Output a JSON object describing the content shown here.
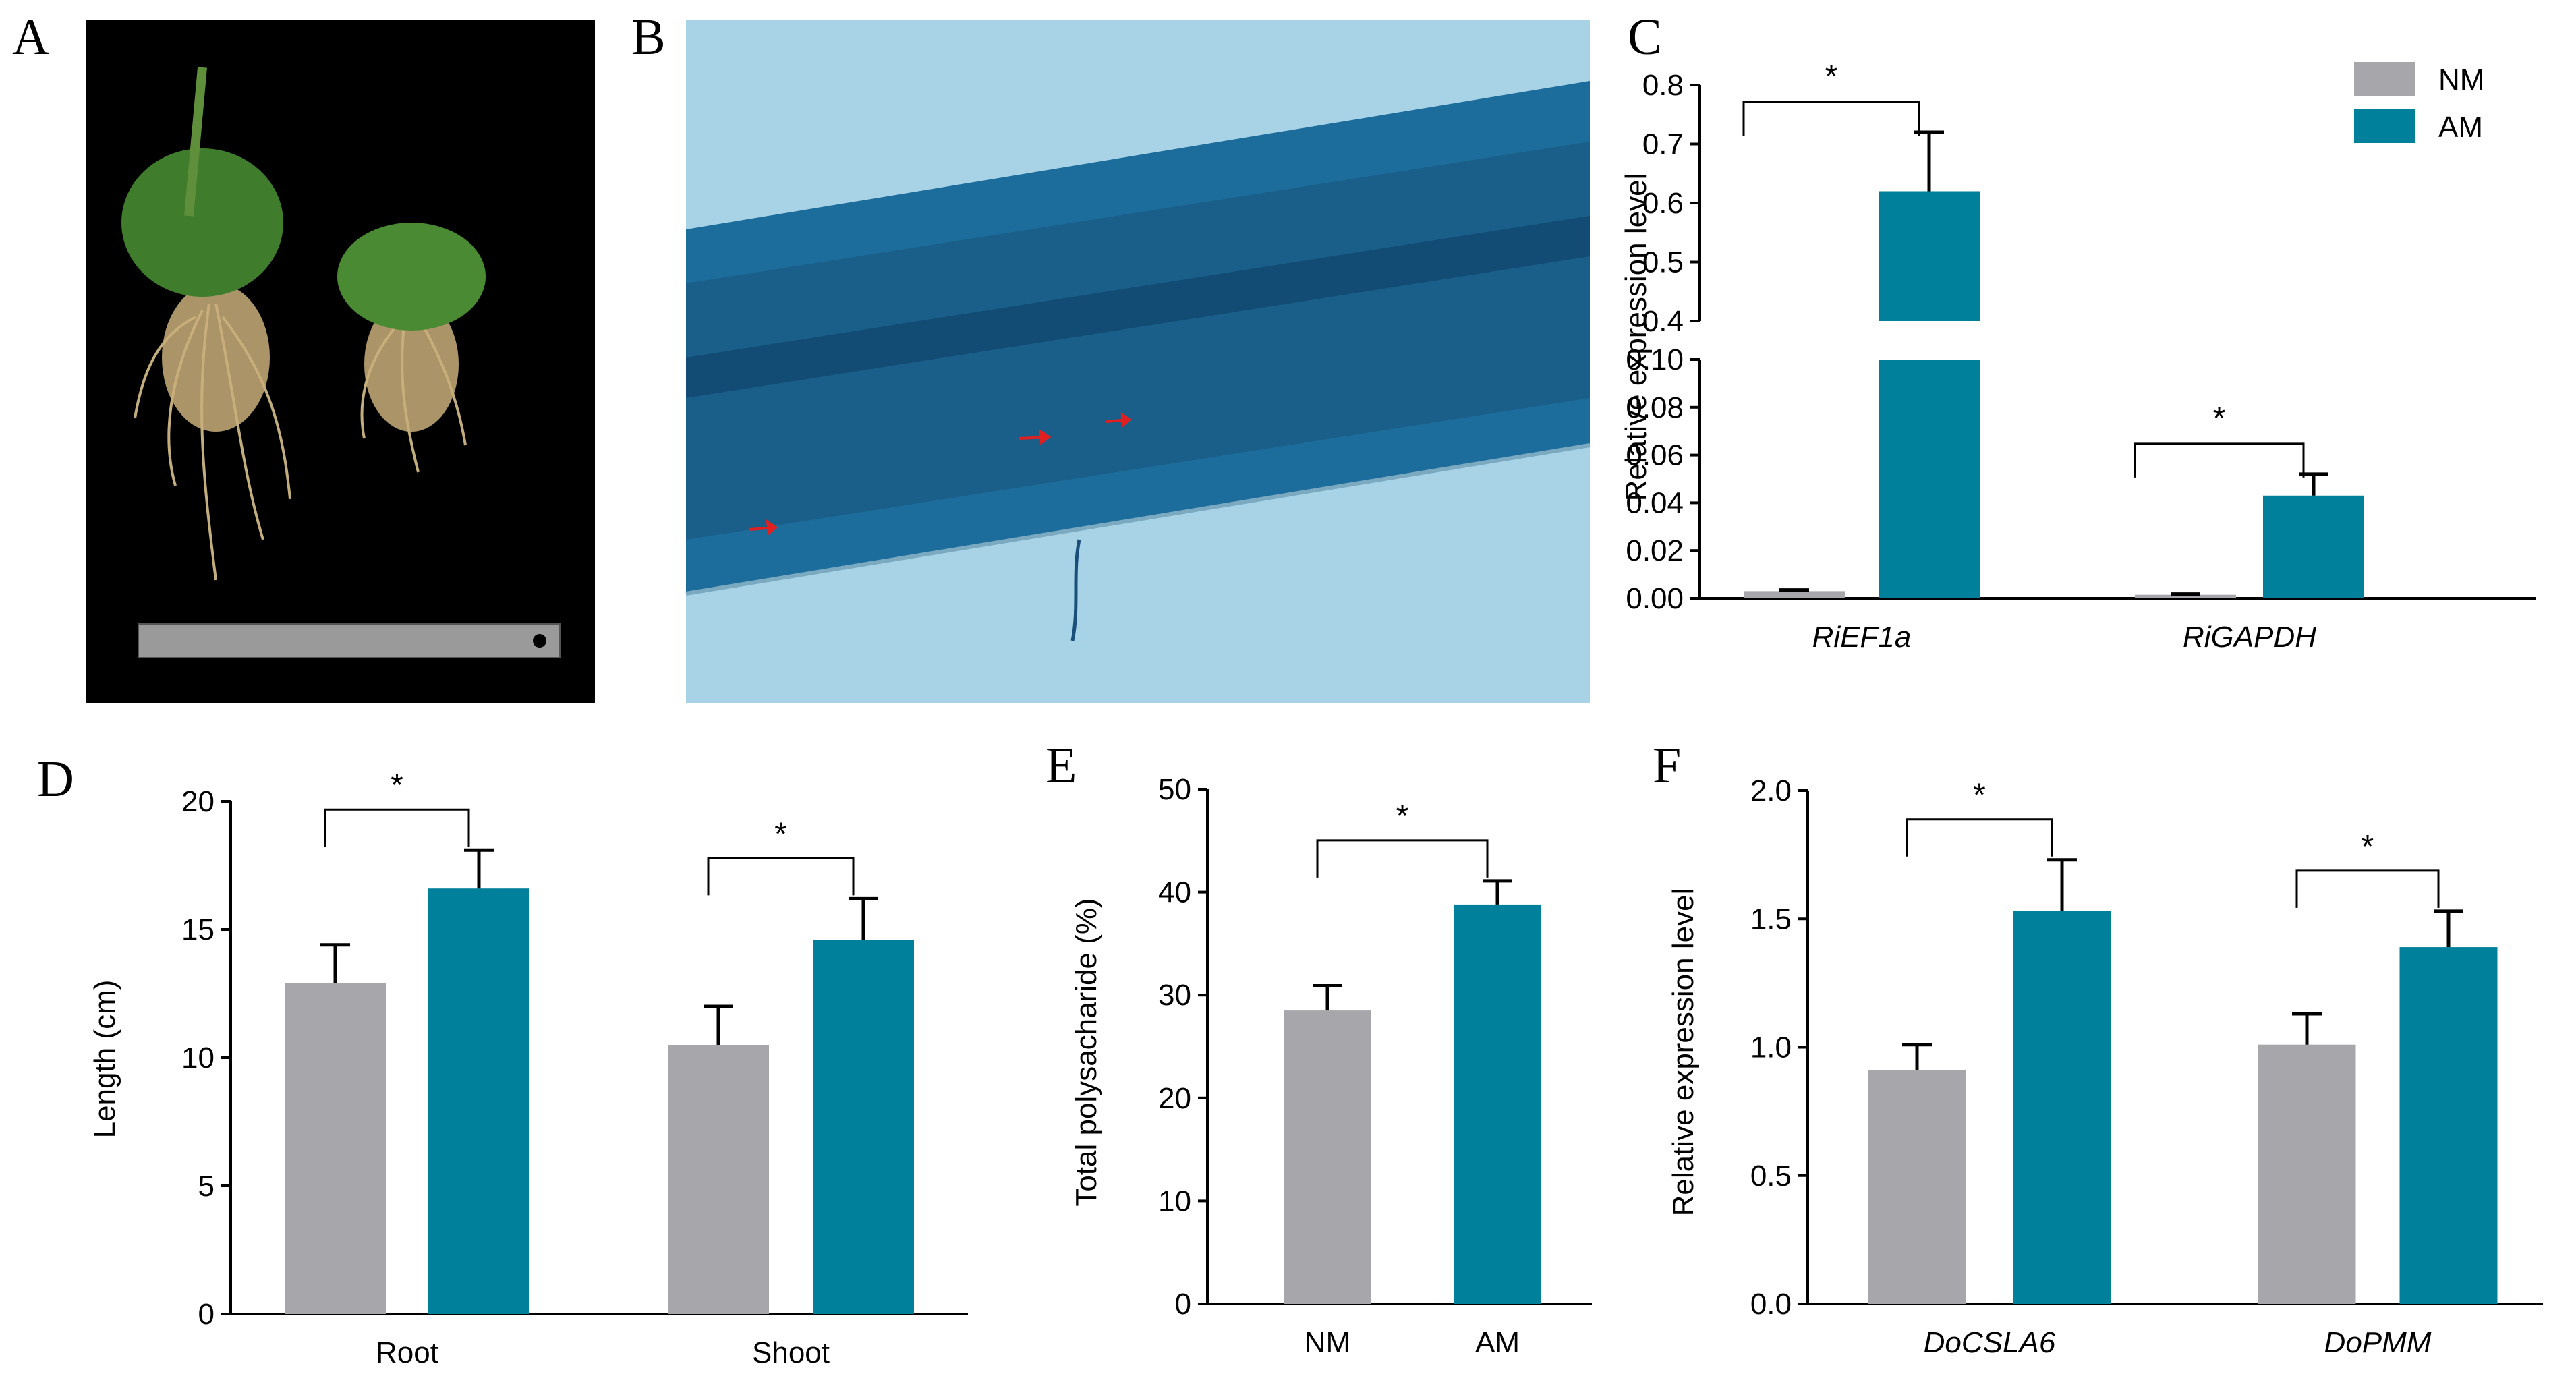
{
  "colors": {
    "nm": "#a7a6ab",
    "am": "#00809a",
    "stain_bg": "#a8d3e6",
    "photo_bg": "#000000"
  },
  "legend": [
    "NM",
    "AM"
  ],
  "panels": {
    "A": {
      "letter": "A",
      "icon": "plant-photo-icon"
    },
    "B": {
      "letter": "B",
      "icon": "root-micrograph-icon"
    }
  },
  "chart_data": [
    {
      "panel": "C",
      "type": "bar",
      "categories": [
        "RiEF1a",
        "RiGAPDH"
      ],
      "ylabel": "Relative expression level",
      "y_break": {
        "lower": [
          0,
          0.1
        ],
        "upper": [
          0.4,
          0.8
        ]
      },
      "lower_ticks": [
        "0.00",
        "0.02",
        "0.04",
        "0.06",
        "0.08",
        "0.10"
      ],
      "upper_ticks": [
        "0.4",
        "0.5",
        "0.6",
        "0.7",
        "0.8"
      ],
      "series": [
        {
          "name": "NM",
          "values": [
            0.003,
            0.0015
          ],
          "errors": [
            0.0005,
            0.0003
          ]
        },
        {
          "name": "AM",
          "values": [
            0.62,
            0.043
          ],
          "errors": [
            0.1,
            0.009
          ]
        }
      ],
      "significance": [
        "*",
        "*"
      ]
    },
    {
      "panel": "D",
      "type": "bar",
      "categories": [
        "Root",
        "Shoot"
      ],
      "ylabel": "Length  (cm)",
      "ylim": [
        0,
        20
      ],
      "ticks": [
        "0",
        "5",
        "10",
        "15",
        "20"
      ],
      "series": [
        {
          "name": "NM",
          "values": [
            12.9,
            10.5
          ],
          "errors": [
            1.5,
            1.5
          ]
        },
        {
          "name": "AM",
          "values": [
            16.6,
            14.6
          ],
          "errors": [
            1.5,
            1.6
          ]
        }
      ],
      "significance": [
        "*",
        "*"
      ]
    },
    {
      "panel": "E",
      "type": "bar",
      "categories": [
        "NM",
        "AM"
      ],
      "ylabel": "Total polysacharide  (%)",
      "ylim": [
        0,
        50
      ],
      "ticks": [
        "0",
        "10",
        "20",
        "30",
        "40",
        "50"
      ],
      "values": [
        28.5,
        38.8
      ],
      "errors": [
        2.4,
        2.3
      ],
      "significance": [
        "*"
      ]
    },
    {
      "panel": "F",
      "type": "bar",
      "categories": [
        "DoCSLA6",
        "DoPMM"
      ],
      "ylabel": "Relative expression level",
      "ylim": [
        0,
        2.0
      ],
      "ticks": [
        "0.0",
        "0.5",
        "1.0",
        "1.5",
        "2.0"
      ],
      "series": [
        {
          "name": "NM",
          "values": [
            0.91,
            1.01
          ],
          "errors": [
            0.1,
            0.12
          ]
        },
        {
          "name": "AM",
          "values": [
            1.53,
            1.39
          ],
          "errors": [
            0.2,
            0.14
          ]
        }
      ],
      "significance": [
        "*",
        "*"
      ]
    }
  ]
}
